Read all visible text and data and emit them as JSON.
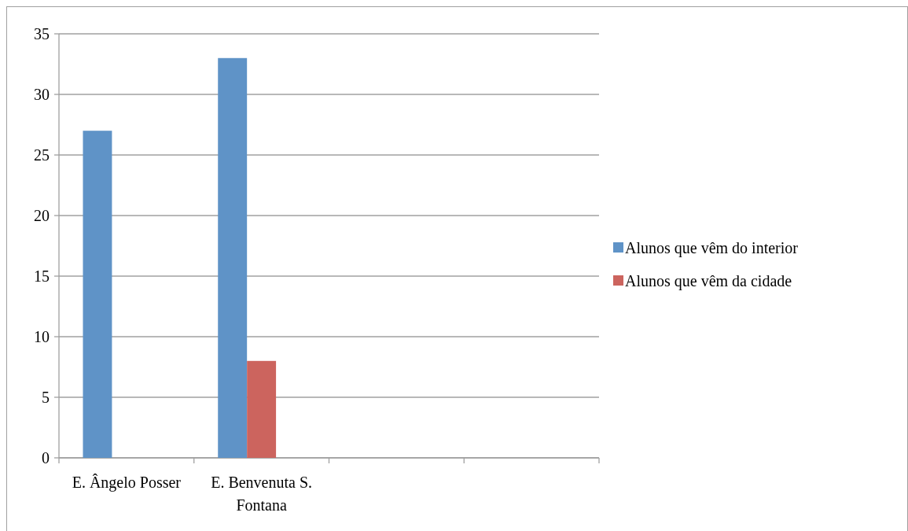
{
  "chart_data": {
    "type": "bar",
    "categories": [
      "E. Ângelo Posser",
      "E. Benvenuta S. Fontana",
      null,
      null
    ],
    "series": [
      {
        "name": "Alunos que vêm do interior",
        "color": "#5f93c7",
        "values": [
          27,
          33,
          null,
          null
        ]
      },
      {
        "name": "Alunos que vêm da cidade",
        "color": "#cc645e",
        "values": [
          null,
          8,
          null,
          null
        ]
      }
    ],
    "ylim": [
      0,
      35
    ],
    "yticks": [
      0,
      5,
      10,
      15,
      20,
      25,
      30,
      35
    ],
    "grid": "y",
    "legend": "right"
  }
}
